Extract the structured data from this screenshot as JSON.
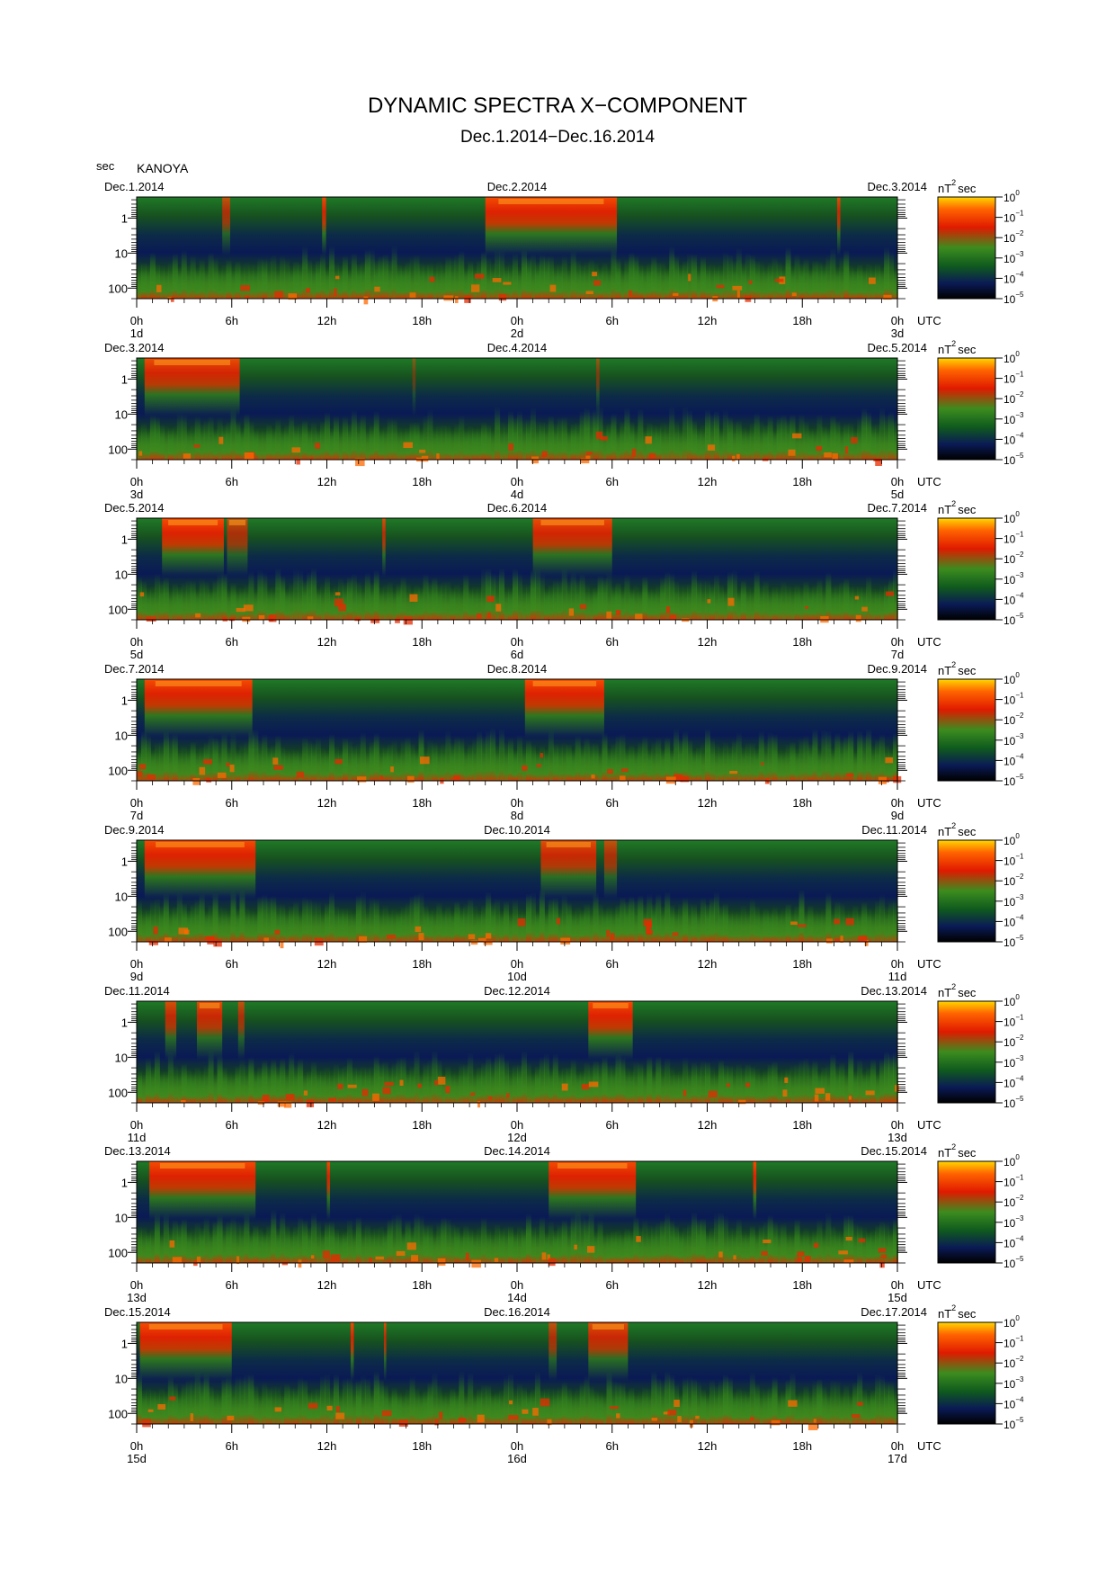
{
  "title": "DYNAMIC SPECTRA X−COMPONENT",
  "subtitle": "Dec.1.2014−Dec.16.2014",
  "station": "KANOYA",
  "y_unit": "sec",
  "x_unit": "UTC",
  "colorbar_unit": "nT",
  "colorbar_unit_sup": "2",
  "colorbar_unit_suffix": "sec",
  "colorbar_ticks": [
    {
      "base": "10",
      "exp": "0"
    },
    {
      "base": "10",
      "exp": "−1"
    },
    {
      "base": "10",
      "exp": "−2"
    },
    {
      "base": "10",
      "exp": "−3"
    },
    {
      "base": "10",
      "exp": "−4"
    },
    {
      "base": "10",
      "exp": "−5"
    }
  ],
  "y_tick_labels": [
    "1",
    "10",
    "100"
  ],
  "x_tick_labels": [
    "0h",
    "6h",
    "12h",
    "18h",
    "0h",
    "6h",
    "12h",
    "18h",
    "0h"
  ],
  "colormap": [
    "#000000",
    "#0a1a55",
    "#0f5a1e",
    "#3c8c1e",
    "#e01a00",
    "#ff6400",
    "#ffd700"
  ],
  "chart_data": {
    "type": "heatmap",
    "title": "DYNAMIC SPECTRA X−COMPONENT",
    "subtitle": "Dec.1.2014−Dec.16.2014",
    "ylabel": "sec",
    "xlabel": "UTC",
    "y_scale": "log",
    "y_range_sec": [
      0.25,
      200
    ],
    "color_scale": "log",
    "color_range": [
      1e-05,
      1
    ],
    "colorbar_label": "nT²sec",
    "panels": [
      {
        "start_label": "Dec.1.2014",
        "mid_label": "Dec.2.2014",
        "end_label": "Dec.3.2014",
        "days": [
          "1d",
          "2d",
          "3d"
        ],
        "bursts": [
          [
            5.4,
            5.9,
            0.7
          ],
          [
            11.7,
            11.95,
            0.9
          ],
          [
            22.0,
            30.3,
            0.95
          ],
          [
            44.2,
            44.4,
            0.85
          ]
        ]
      },
      {
        "start_label": "Dec.3.2014",
        "mid_label": "Dec.4.2014",
        "end_label": "Dec.5.2014",
        "days": [
          "3d",
          "4d",
          "5d"
        ],
        "bursts": [
          [
            0.5,
            6.5,
            0.9
          ],
          [
            17.4,
            17.6,
            0.4
          ],
          [
            29.0,
            29.2,
            0.5
          ]
        ]
      },
      {
        "start_label": "Dec.5.2014",
        "mid_label": "Dec.6.2014",
        "end_label": "Dec.7.2014",
        "days": [
          "5d",
          "6d",
          "7d"
        ],
        "bursts": [
          [
            1.6,
            5.5,
            0.95
          ],
          [
            5.7,
            7.0,
            0.7
          ],
          [
            15.5,
            15.7,
            0.8
          ],
          [
            25.0,
            30.0,
            0.9
          ]
        ]
      },
      {
        "start_label": "Dec.7.2014",
        "mid_label": "Dec.8.2014",
        "end_label": "Dec.9.2014",
        "days": [
          "7d",
          "8d",
          "9d"
        ],
        "bursts": [
          [
            0.5,
            7.3,
            0.95
          ],
          [
            24.5,
            29.5,
            0.95
          ]
        ]
      },
      {
        "start_label": "Dec.9.2014",
        "mid_label": "Dec.10.2014",
        "end_label": "Dec.11.2014",
        "days": [
          "9d",
          "10d",
          "11d"
        ],
        "bursts": [
          [
            0.5,
            7.5,
            0.95
          ],
          [
            25.5,
            29.0,
            0.85
          ],
          [
            29.5,
            30.3,
            0.7
          ]
        ]
      },
      {
        "start_label": "Dec.11.2014",
        "mid_label": "Dec.12.2014",
        "end_label": "Dec.13.2014",
        "days": [
          "11d",
          "12d",
          "13d"
        ],
        "bursts": [
          [
            1.8,
            2.5,
            0.8
          ],
          [
            3.8,
            5.4,
            0.85
          ],
          [
            6.4,
            6.8,
            0.7
          ],
          [
            28.5,
            31.3,
            0.95
          ]
        ]
      },
      {
        "start_label": "Dec.13.2014",
        "mid_label": "Dec.14.2014",
        "end_label": "Dec.15.2014",
        "days": [
          "13d",
          "14d",
          "15d"
        ],
        "bursts": [
          [
            0.8,
            7.5,
            0.95
          ],
          [
            12.0,
            12.2,
            0.9
          ],
          [
            26.0,
            31.5,
            0.95
          ],
          [
            38.9,
            39.1,
            0.95
          ]
        ]
      },
      {
        "start_label": "Dec.15.2014",
        "mid_label": "Dec.16.2014",
        "end_label": "Dec.17.2014",
        "days": [
          "15d",
          "16d",
          "17d"
        ],
        "bursts": [
          [
            0.2,
            6.0,
            0.95
          ],
          [
            13.5,
            13.7,
            0.95
          ],
          [
            15.6,
            15.75,
            0.8
          ],
          [
            26.0,
            26.5,
            0.7
          ],
          [
            28.5,
            31.0,
            0.85
          ]
        ]
      }
    ]
  }
}
